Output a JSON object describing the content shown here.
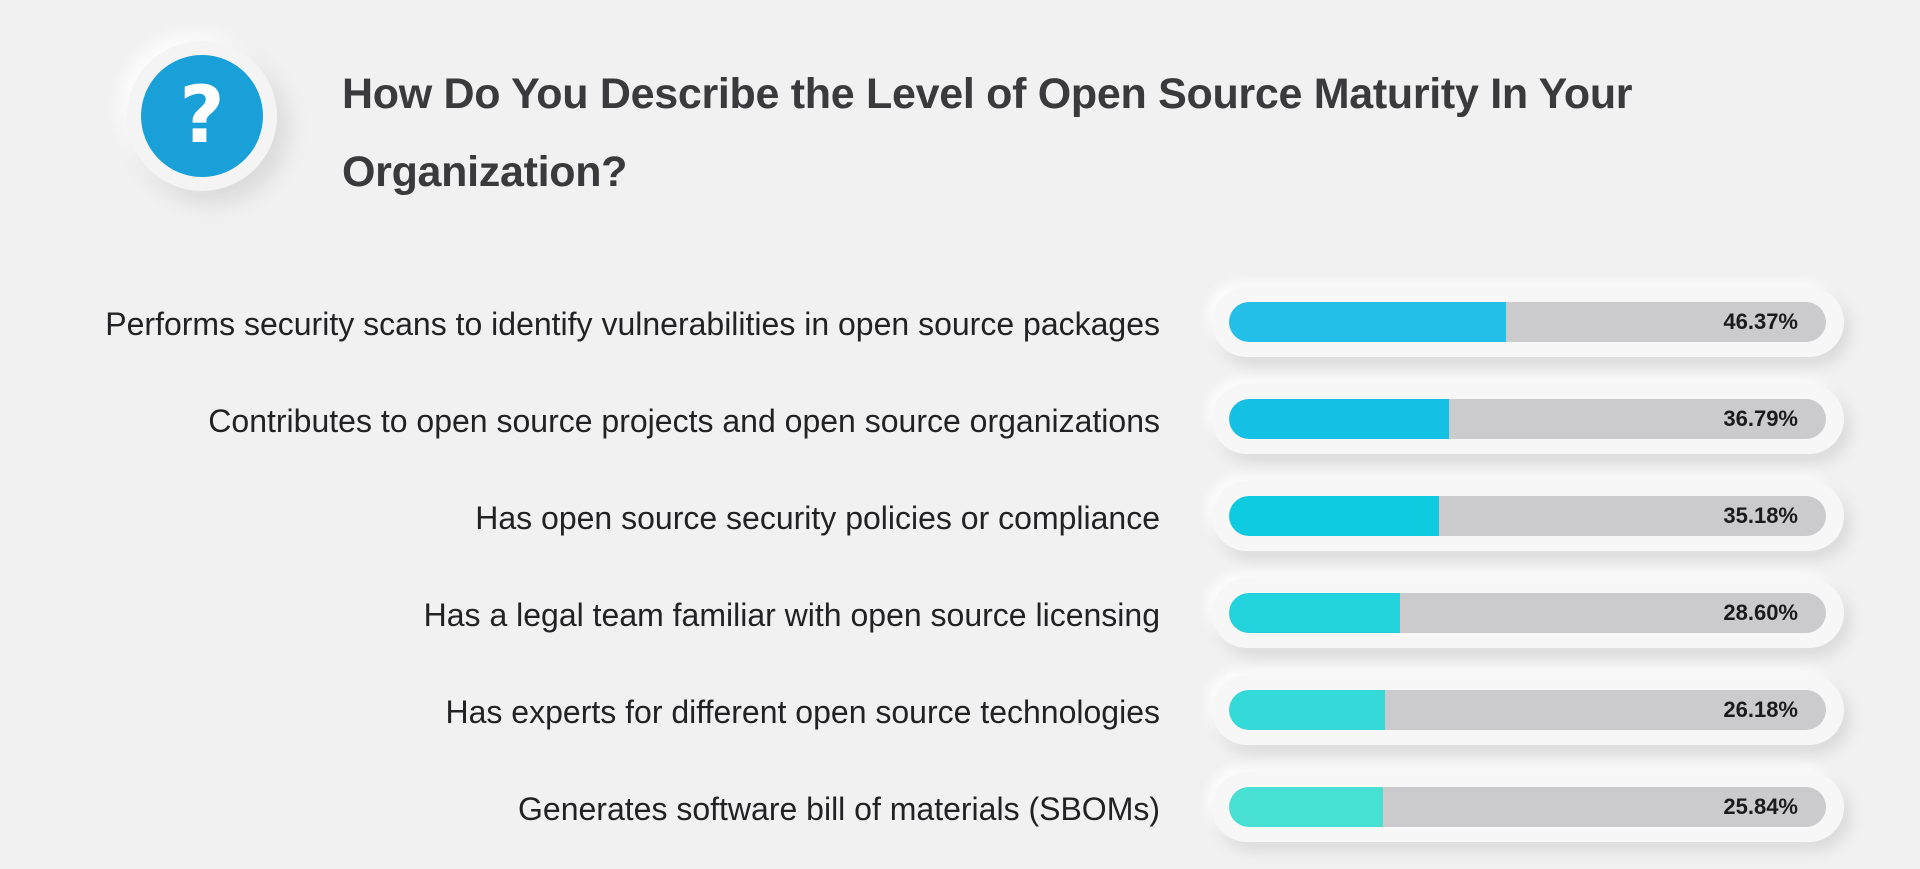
{
  "header": {
    "icon": "question-mark-icon",
    "icon_glyph": "?",
    "title": "How Do You Describe the Level of Open Source Maturity In Your Organization?"
  },
  "chart_data": {
    "type": "bar",
    "orientation": "horizontal",
    "title": "How Do You Describe the Level of Open Source Maturity In Your Organization?",
    "categories": [
      "Performs security scans to identify vulnerabilities in open source packages",
      "Contributes to open source projects and open source organizations",
      "Has open source security policies or compliance",
      "Has a legal team familiar with open source licensing",
      "Has experts for different open source technologies",
      "Generates software bill of materials (SBOMs)"
    ],
    "values": [
      46.37,
      36.79,
      35.18,
      28.6,
      26.18,
      25.84
    ],
    "value_labels": [
      "46.37%",
      "36.79%",
      "35.18%",
      "28.60%",
      "26.18%",
      "25.84%"
    ],
    "xlim": [
      0,
      100
    ],
    "unit": "%",
    "grid": false,
    "legend": "none",
    "colors": [
      "#24bfe8",
      "#14c1e4",
      "#0fcbe0",
      "#22d2dc",
      "#34dad8",
      "#48e0d2"
    ],
    "track_color": "#cbcbcd"
  }
}
